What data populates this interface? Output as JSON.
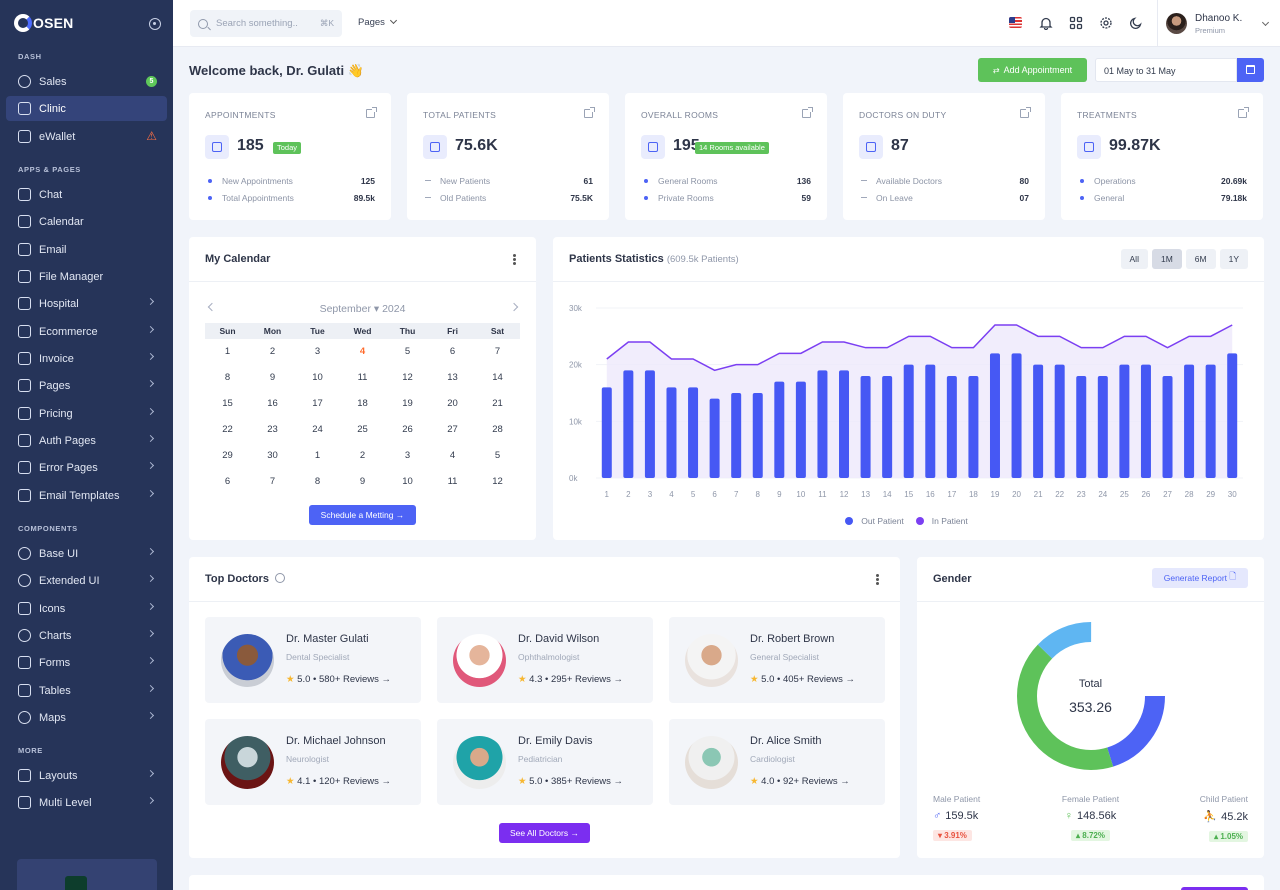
{
  "app": {
    "logo": "OSEN"
  },
  "sidebar": {
    "sections": {
      "dash": "DASH",
      "apps": "APPS & PAGES",
      "components": "COMPONENTS",
      "more": "MORE"
    },
    "items": [
      {
        "label": "Sales",
        "badge": "5"
      },
      {
        "label": "Clinic"
      },
      {
        "label": "eWallet",
        "warn": "⚠"
      },
      {
        "label": "Chat"
      },
      {
        "label": "Calendar"
      },
      {
        "label": "Email"
      },
      {
        "label": "File Manager"
      },
      {
        "label": "Hospital"
      },
      {
        "label": "Ecommerce"
      },
      {
        "label": "Invoice"
      },
      {
        "label": "Pages"
      },
      {
        "label": "Pricing"
      },
      {
        "label": "Auth Pages"
      },
      {
        "label": "Error Pages"
      },
      {
        "label": "Email Templates"
      },
      {
        "label": "Base UI"
      },
      {
        "label": "Extended UI"
      },
      {
        "label": "Icons"
      },
      {
        "label": "Charts"
      },
      {
        "label": "Forms"
      },
      {
        "label": "Tables"
      },
      {
        "label": "Maps"
      },
      {
        "label": "Layouts"
      },
      {
        "label": "Multi Level"
      }
    ]
  },
  "topbar": {
    "search_placeholder": "Search something..",
    "search_shortcut": "⌘K",
    "pages_menu": "Pages",
    "user": {
      "name": "Dhanoo K.",
      "role": "Premium"
    }
  },
  "header": {
    "welcome": "Welcome back, Dr. Gulati 👋",
    "add_appointment": "Add Appointment",
    "date_range": "01 May to 31 May"
  },
  "stats": [
    {
      "label": "APPOINTMENTS",
      "value": "185",
      "pill": "Today",
      "rows": [
        {
          "label": "New Appointments",
          "value": "125"
        },
        {
          "label": "Total Appointments",
          "value": "89.5k"
        }
      ]
    },
    {
      "label": "TOTAL PATIENTS",
      "value": "75.6K",
      "rows": [
        {
          "label": "New Patients",
          "value": "61"
        },
        {
          "label": "Old Patients",
          "value": "75.5K"
        }
      ]
    },
    {
      "label": "OVERALL ROOMS",
      "value": "195",
      "pill": "14 Rooms available",
      "rows": [
        {
          "label": "General Rooms",
          "value": "136"
        },
        {
          "label": "Private Rooms",
          "value": "59"
        }
      ]
    },
    {
      "label": "DOCTORS ON DUTY",
      "value": "87",
      "rows": [
        {
          "label": "Available Doctors",
          "value": "80"
        },
        {
          "label": "On Leave",
          "value": "07"
        }
      ]
    },
    {
      "label": "TREATMENTS",
      "value": "99.87K",
      "rows": [
        {
          "label": "Operations",
          "value": "20.69k"
        },
        {
          "label": "General",
          "value": "79.18k"
        }
      ]
    }
  ],
  "calendar": {
    "title": "My Calendar",
    "month": "September",
    "year": "2024",
    "weekdays": [
      "Sun",
      "Mon",
      "Tue",
      "Wed",
      "Thu",
      "Fri",
      "Sat"
    ],
    "weeks": [
      [
        "1",
        "2",
        "3",
        "4",
        "5",
        "6",
        "7"
      ],
      [
        "8",
        "9",
        "10",
        "11",
        "12",
        "13",
        "14"
      ],
      [
        "15",
        "16",
        "17",
        "18",
        "19",
        "20",
        "21"
      ],
      [
        "22",
        "23",
        "24",
        "25",
        "26",
        "27",
        "28"
      ],
      [
        "29",
        "30",
        "1",
        "2",
        "3",
        "4",
        "5"
      ],
      [
        "6",
        "7",
        "8",
        "9",
        "10",
        "11",
        "12"
      ]
    ],
    "today": "4",
    "button": "Schedule a Metting →"
  },
  "stats_chart": {
    "title": "Patients Statistics",
    "subtitle": "(609.5k Patients)",
    "tabs": [
      "All",
      "1M",
      "6M",
      "1Y"
    ],
    "active_tab": "1M"
  },
  "chart_data": {
    "type": "bar",
    "categories": [
      "1",
      "2",
      "3",
      "4",
      "5",
      "6",
      "7",
      "8",
      "9",
      "10",
      "11",
      "12",
      "13",
      "14",
      "15",
      "16",
      "17",
      "18",
      "19",
      "20",
      "21",
      "22",
      "23",
      "24",
      "25",
      "26",
      "27",
      "28",
      "29",
      "30"
    ],
    "ylim": [
      0,
      30000
    ],
    "yticks": [
      "0k",
      "10k",
      "20k",
      "30k"
    ],
    "series": [
      {
        "name": "Out Patient",
        "type": "bar",
        "color": "#4658f4",
        "values": [
          16000,
          19000,
          19000,
          16000,
          16000,
          14000,
          15000,
          15000,
          17000,
          17000,
          19000,
          19000,
          18000,
          18000,
          20000,
          20000,
          18000,
          18000,
          22000,
          22000,
          20000,
          20000,
          18000,
          18000,
          20000,
          20000,
          18000,
          20000,
          20000,
          22000
        ]
      },
      {
        "name": "In Patient",
        "type": "area",
        "color": "#7b3ff2",
        "values": [
          21000,
          24000,
          24000,
          21000,
          21000,
          19000,
          20000,
          20000,
          22000,
          22000,
          24000,
          24000,
          23000,
          23000,
          25000,
          25000,
          23000,
          23000,
          27000,
          27000,
          25000,
          25000,
          23000,
          23000,
          25000,
          25000,
          23000,
          25000,
          25000,
          27000
        ]
      }
    ],
    "legend": "bottom"
  },
  "doctors": {
    "title": "Top Doctors",
    "see_all": "See All Doctors →",
    "list": [
      {
        "name": "Dr. Master Gulati",
        "specialty": "Dental Specialist",
        "rating": "5.0",
        "reviews": "580+ Reviews →"
      },
      {
        "name": "Dr. David Wilson",
        "specialty": "Ophthalmologist",
        "rating": "4.3",
        "reviews": "295+ Reviews →"
      },
      {
        "name": "Dr. Robert Brown",
        "specialty": "General Specialist",
        "rating": "5.0",
        "reviews": "405+ Reviews →"
      },
      {
        "name": "Dr. Michael Johnson",
        "specialty": "Neurologist",
        "rating": "4.1",
        "reviews": "120+ Reviews →"
      },
      {
        "name": "Dr. Emily Davis",
        "specialty": "Pediatrician",
        "rating": "5.0",
        "reviews": "385+ Reviews →"
      },
      {
        "name": "Dr. Alice Smith",
        "specialty": "Cardiologist",
        "rating": "4.0",
        "reviews": "92+ Reviews →"
      }
    ]
  },
  "gender": {
    "title": "Gender",
    "button": "Generate Report",
    "center_label": "Total",
    "center_value": "353.26",
    "segments": [
      {
        "name": "Male Patient",
        "value": 159.5,
        "color": "#4d63f5"
      },
      {
        "name": "Female Patient",
        "value": 148.56,
        "color": "#5ec25a"
      },
      {
        "name": "Child Patient",
        "value": 45.2,
        "color": "#5fb6f2"
      }
    ],
    "stats": [
      {
        "label": "Male Patient",
        "value": "159.5k",
        "change": "▾ 3.91%",
        "trend": "down"
      },
      {
        "label": "Female Patient",
        "value": "148.56k",
        "change": "▴ 8.72%",
        "trend": "up"
      },
      {
        "label": "Child Patient",
        "value": "45.2k",
        "change": "▴ 1.05%",
        "trend": "up"
      }
    ]
  }
}
